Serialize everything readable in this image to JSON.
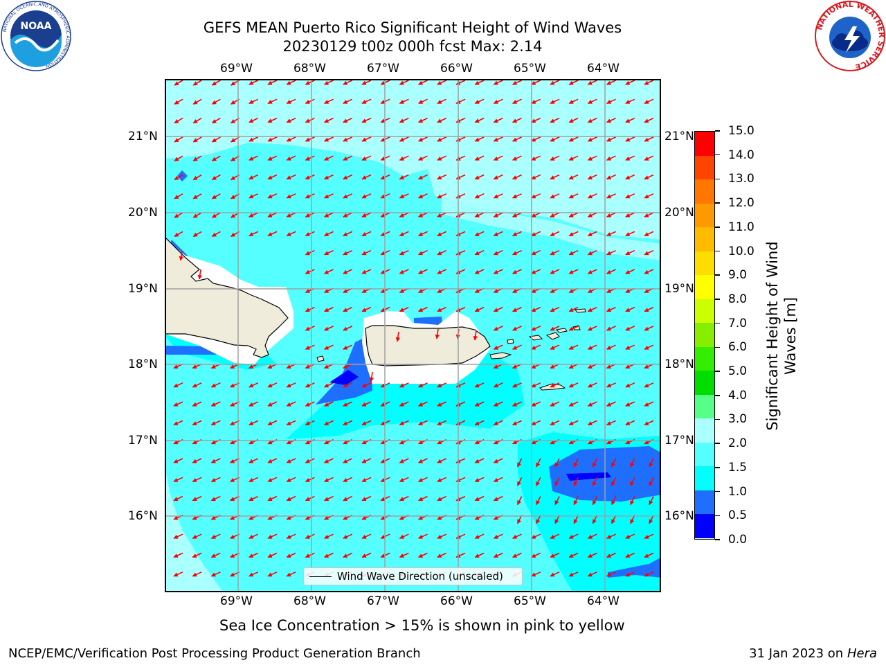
{
  "title": {
    "line1": "GEFS MEAN Puerto Rico Significant Height of Wind Waves",
    "line2": "20230129 t00z 000h fcst   Max: 2.14"
  },
  "map": {
    "lon_labels": [
      "69°W",
      "68°W",
      "67°W",
      "66°W",
      "65°W",
      "64°W"
    ],
    "lat_labels": [
      "21°N",
      "20°N",
      "19°N",
      "18°N",
      "17°N",
      "16°N"
    ],
    "legend_label": "Wind Wave Direction (unscaled)",
    "land_color": "#efecdc",
    "arrow_color": "#ff0000"
  },
  "colorbar": {
    "title": "Significant Height of Wind Waves [m]",
    "title_line1": "Significant Height of Wind",
    "title_line2": "Waves [m]",
    "ticks": [
      "0.0",
      "0.5",
      "1.0",
      "1.5",
      "2.0",
      "3.0",
      "4.0",
      "5.0",
      "6.0",
      "7.0",
      "8.0",
      "9.0",
      "10.0",
      "11.0",
      "12.0",
      "13.0",
      "14.0",
      "15.0"
    ],
    "colors": [
      "#0000ff",
      "#1f6fff",
      "#00ffff",
      "#55ffff",
      "#aaffff",
      "#55ff88",
      "#00dd00",
      "#33ee00",
      "#88ee00",
      "#ccff00",
      "#ffff00",
      "#ffdd00",
      "#ffbb00",
      "#ff9900",
      "#ff7700",
      "#ff4400",
      "#ff0000"
    ]
  },
  "note": "Sea Ice Concentration > 15% is shown in pink to yellow",
  "footer": {
    "left": "NCEP/EMC/Verification Post Processing Product Generation Branch",
    "right_prefix": "31 Jan 2023 on ",
    "right_machine": "Hera"
  },
  "logos": {
    "noaa_text": "NOAA",
    "noaa_ring": "NATIONAL OCEANIC AND ATMOSPHERIC ADMINISTRATION",
    "noaa_bottom": "U.S. DEPARTMENT OF COMMERCE",
    "nws_text": "NATIONAL WEATHER SERVICE"
  }
}
